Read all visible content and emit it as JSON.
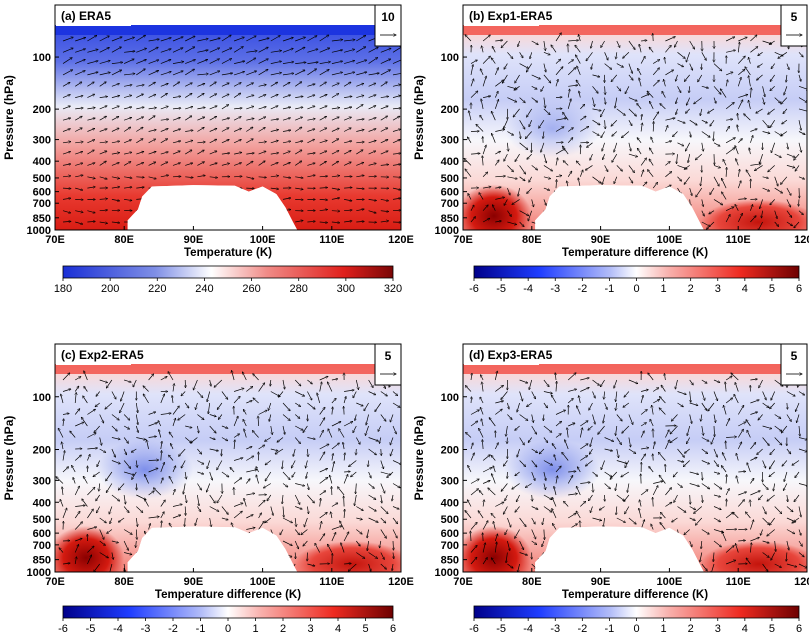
{
  "chart_data": [
    {
      "type": "heatmap",
      "title": "(a) ERA5",
      "xlabel": "Temperature (K)",
      "ylabel": "Pressure (hPa)",
      "x_ticks": [
        "70E",
        "80E",
        "90E",
        "100E",
        "110E",
        "120E"
      ],
      "y_ticks": [
        "100",
        "200",
        "300",
        "400",
        "500",
        "600",
        "700",
        "850",
        "1000"
      ],
      "xlim": [
        70,
        120
      ],
      "ylim": [
        1000,
        50
      ],
      "y_scale": "log",
      "colorbar": {
        "ticks": [
          "180",
          "200",
          "220",
          "240",
          "260",
          "280",
          "300",
          "320"
        ],
        "range": [
          180,
          320
        ],
        "colormap": "blue-white-red"
      },
      "vector_key": "10",
      "field": "absolute",
      "terrain_masked": true
    },
    {
      "type": "heatmap",
      "title": "(b) Exp1-ERA5",
      "xlabel": "Temperature difference (K)",
      "ylabel": "Pressure (hPa)",
      "x_ticks": [
        "70E",
        "80E",
        "90E",
        "100E",
        "110E",
        "120E"
      ],
      "y_ticks": [
        "100",
        "200",
        "300",
        "400",
        "500",
        "600",
        "700",
        "850",
        "1000"
      ],
      "xlim": [
        70,
        120
      ],
      "ylim": [
        1000,
        50
      ],
      "y_scale": "log",
      "colorbar": {
        "ticks": [
          "-6",
          "-5",
          "-4",
          "-3",
          "-2",
          "-1",
          "0",
          "1",
          "2",
          "3",
          "4",
          "5",
          "6"
        ],
        "range": [
          -6,
          6
        ],
        "colormap": "blue-white-red"
      },
      "vector_key": "5",
      "field": "difference",
      "terrain_masked": true
    },
    {
      "type": "heatmap",
      "title": "(c) Exp2-ERA5",
      "xlabel": "Temperature difference (K)",
      "ylabel": "Pressure (hPa)",
      "x_ticks": [
        "70E",
        "80E",
        "90E",
        "100E",
        "110E",
        "120E"
      ],
      "y_ticks": [
        "100",
        "200",
        "300",
        "400",
        "500",
        "600",
        "700",
        "850",
        "1000"
      ],
      "xlim": [
        70,
        120
      ],
      "ylim": [
        1000,
        50
      ],
      "y_scale": "log",
      "colorbar": {
        "ticks": [
          "-6",
          "-5",
          "-4",
          "-3",
          "-2",
          "-1",
          "0",
          "1",
          "2",
          "3",
          "4",
          "5",
          "6"
        ],
        "range": [
          -6,
          6
        ],
        "colormap": "blue-white-red"
      },
      "vector_key": "5",
      "field": "difference",
      "terrain_masked": true
    },
    {
      "type": "heatmap",
      "title": "(d) Exp3-ERA5",
      "xlabel": "Temperature difference (K)",
      "ylabel": "Pressure (hPa)",
      "x_ticks": [
        "70E",
        "80E",
        "90E",
        "100E",
        "110E",
        "120E"
      ],
      "y_ticks": [
        "100",
        "200",
        "300",
        "400",
        "500",
        "600",
        "700",
        "850",
        "1000"
      ],
      "xlim": [
        70,
        120
      ],
      "ylim": [
        1000,
        50
      ],
      "y_scale": "log",
      "colorbar": {
        "ticks": [
          "-6",
          "-5",
          "-4",
          "-3",
          "-2",
          "-1",
          "0",
          "1",
          "2",
          "3",
          "4",
          "5",
          "6"
        ],
        "range": [
          -6,
          6
        ],
        "colormap": "blue-white-red"
      },
      "vector_key": "5",
      "field": "difference",
      "terrain_masked": true
    }
  ]
}
